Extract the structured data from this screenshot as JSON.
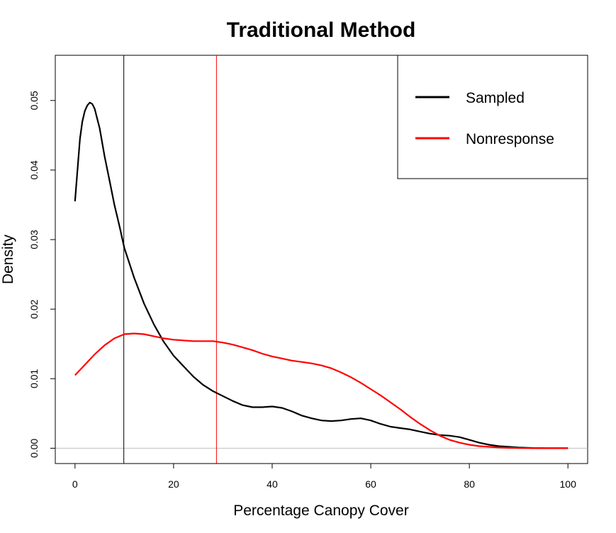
{
  "chart_data": {
    "type": "line",
    "title": "Traditional Method",
    "xlabel": "Percentage Canopy Cover",
    "ylabel": "Density",
    "xlim": [
      -4,
      104
    ],
    "ylim": [
      -0.0022,
      0.0565
    ],
    "x_ticks": [
      0,
      20,
      40,
      60,
      80,
      100
    ],
    "x_tick_labels": [
      "0",
      "20",
      "40",
      "60",
      "80",
      "100"
    ],
    "y_ticks": [
      0,
      0.01,
      0.02,
      0.03,
      0.04,
      0.05
    ],
    "y_tick_labels": [
      "0.00",
      "0.01",
      "0.02",
      "0.03",
      "0.04",
      "0.05"
    ],
    "baseline": {
      "y": 0,
      "color": "#bebebe"
    },
    "vlines": [
      {
        "x": 9.9,
        "color": "#000000"
      },
      {
        "x": 28.7,
        "color": "#ff0000"
      }
    ],
    "legend": {
      "position": "top-right",
      "entries": [
        {
          "label": "Sampled",
          "color": "#000000"
        },
        {
          "label": "Nonresponse",
          "color": "#ff0000"
        }
      ]
    },
    "series": [
      {
        "name": "Sampled",
        "color": "#000000",
        "points": [
          [
            0,
            0.0355
          ],
          [
            0.5,
            0.04
          ],
          [
            1,
            0.0445
          ],
          [
            1.5,
            0.047
          ],
          [
            2,
            0.0485
          ],
          [
            2.5,
            0.0493
          ],
          [
            3,
            0.0497
          ],
          [
            3.5,
            0.0495
          ],
          [
            4,
            0.0488
          ],
          [
            5,
            0.046
          ],
          [
            6,
            0.042
          ],
          [
            7,
            0.0385
          ],
          [
            8,
            0.035
          ],
          [
            9,
            0.032
          ],
          [
            10,
            0.0288
          ],
          [
            12,
            0.0245
          ],
          [
            14,
            0.0208
          ],
          [
            16,
            0.0178
          ],
          [
            18,
            0.0153
          ],
          [
            20,
            0.0133
          ],
          [
            22,
            0.0118
          ],
          [
            24,
            0.0103
          ],
          [
            26,
            0.0091
          ],
          [
            28,
            0.0082
          ],
          [
            30,
            0.0075
          ],
          [
            32,
            0.0068
          ],
          [
            34,
            0.0062
          ],
          [
            36,
            0.0059
          ],
          [
            38,
            0.0059
          ],
          [
            40,
            0.006
          ],
          [
            42,
            0.0058
          ],
          [
            44,
            0.0053
          ],
          [
            46,
            0.0047
          ],
          [
            48,
            0.0043
          ],
          [
            50,
            0.004
          ],
          [
            52,
            0.0039
          ],
          [
            54,
            0.004
          ],
          [
            56,
            0.0042
          ],
          [
            58,
            0.0043
          ],
          [
            60,
            0.004
          ],
          [
            62,
            0.0035
          ],
          [
            64,
            0.0031
          ],
          [
            66,
            0.0029
          ],
          [
            68,
            0.0027
          ],
          [
            70,
            0.0024
          ],
          [
            72,
            0.0021
          ],
          [
            74,
            0.0019
          ],
          [
            76,
            0.0018
          ],
          [
            78,
            0.0016
          ],
          [
            80,
            0.0012
          ],
          [
            82,
            0.0008
          ],
          [
            84,
            0.0005
          ],
          [
            86,
            0.0003
          ],
          [
            88,
            0.0002
          ],
          [
            90,
            0.0001
          ],
          [
            93,
            3e-05
          ],
          [
            96,
            1e-05
          ],
          [
            100,
            0.0
          ]
        ]
      },
      {
        "name": "Nonresponse",
        "color": "#ff0000",
        "points": [
          [
            0,
            0.0105
          ],
          [
            2,
            0.012
          ],
          [
            4,
            0.0135
          ],
          [
            6,
            0.0148
          ],
          [
            8,
            0.0158
          ],
          [
            10,
            0.0164
          ],
          [
            12,
            0.0165
          ],
          [
            14,
            0.0164
          ],
          [
            16,
            0.0161
          ],
          [
            18,
            0.0158
          ],
          [
            20,
            0.0156
          ],
          [
            22,
            0.0155
          ],
          [
            24,
            0.0154
          ],
          [
            26,
            0.0154
          ],
          [
            28,
            0.0154
          ],
          [
            30,
            0.0152
          ],
          [
            32,
            0.0149
          ],
          [
            34,
            0.0145
          ],
          [
            36,
            0.0141
          ],
          [
            38,
            0.0136
          ],
          [
            40,
            0.0132
          ],
          [
            42,
            0.0129
          ],
          [
            44,
            0.0126
          ],
          [
            46,
            0.0124
          ],
          [
            48,
            0.0122
          ],
          [
            50,
            0.0119
          ],
          [
            52,
            0.0115
          ],
          [
            54,
            0.0109
          ],
          [
            56,
            0.0102
          ],
          [
            58,
            0.0094
          ],
          [
            60,
            0.0085
          ],
          [
            62,
            0.0076
          ],
          [
            64,
            0.0066
          ],
          [
            66,
            0.0056
          ],
          [
            68,
            0.0045
          ],
          [
            70,
            0.0035
          ],
          [
            72,
            0.0026
          ],
          [
            74,
            0.0018
          ],
          [
            76,
            0.0012
          ],
          [
            78,
            0.0008
          ],
          [
            80,
            0.0005
          ],
          [
            82,
            0.0003
          ],
          [
            84,
            0.0002
          ],
          [
            86,
            0.0001
          ],
          [
            88,
            5e-05
          ],
          [
            90,
            2e-05
          ],
          [
            95,
            0.0
          ],
          [
            100,
            0.0
          ]
        ]
      }
    ]
  }
}
